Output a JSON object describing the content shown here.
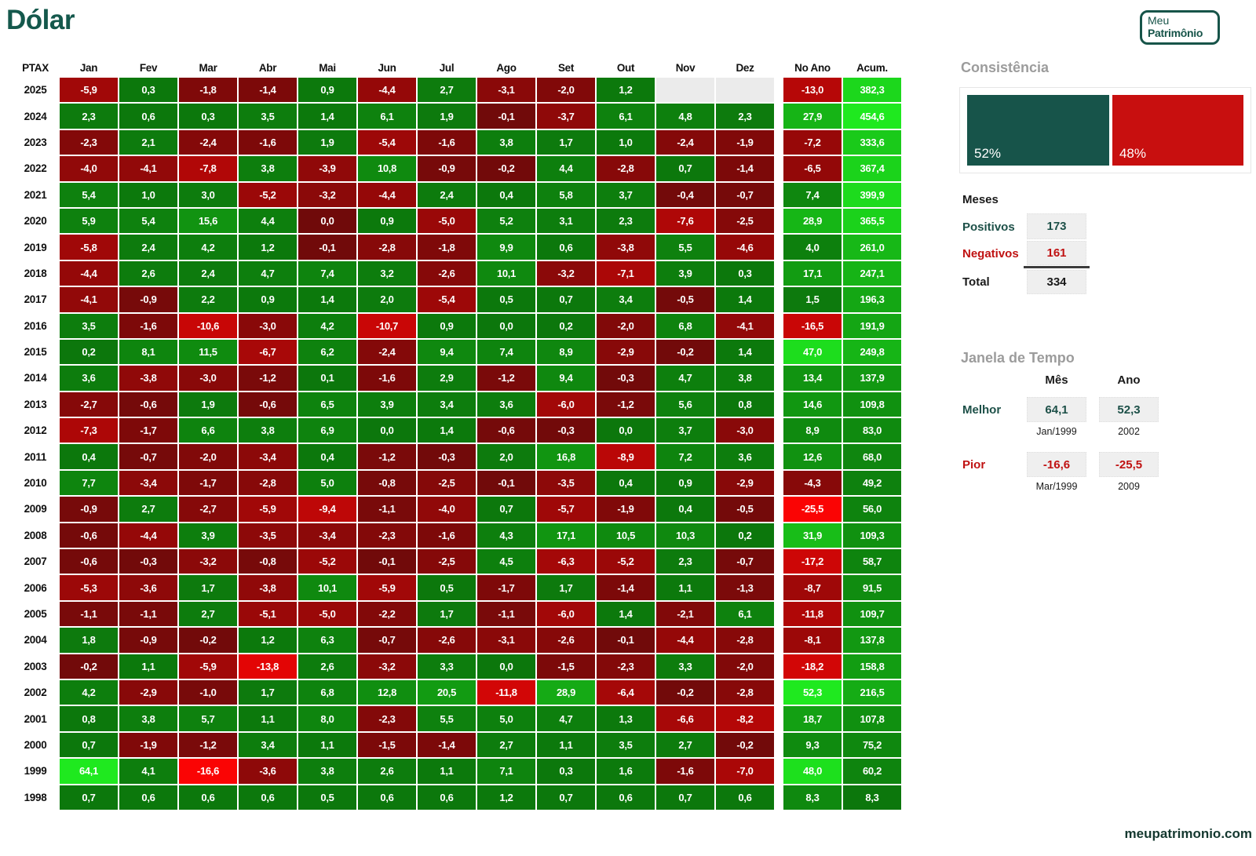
{
  "title": "Dólar",
  "logo": {
    "line1": "Meu",
    "line2": "Patrimônio"
  },
  "footer_link": "meupatrimonio.com",
  "chart_data": {
    "type": "heatmap",
    "title": "Dólar",
    "corner_label": "PTAX",
    "columns": [
      "Jan",
      "Fev",
      "Mar",
      "Abr",
      "Mai",
      "Jun",
      "Jul",
      "Ago",
      "Set",
      "Out",
      "Nov",
      "Dez",
      "No Ano",
      "Acum."
    ],
    "rows": [
      {
        "year": "2025",
        "values": [
          "-5,9",
          "0,3",
          "-1,8",
          "-1,4",
          "0,9",
          "-4,4",
          "2,7",
          "-3,1",
          "-2,0",
          "1,2",
          "",
          "",
          "-13,0",
          "382,3"
        ]
      },
      {
        "year": "2024",
        "values": [
          "2,3",
          "0,6",
          "0,3",
          "3,5",
          "1,4",
          "6,1",
          "1,9",
          "-0,1",
          "-3,7",
          "6,1",
          "4,8",
          "2,3",
          "27,9",
          "454,6"
        ]
      },
      {
        "year": "2023",
        "values": [
          "-2,3",
          "2,1",
          "-2,4",
          "-1,6",
          "1,9",
          "-5,4",
          "-1,6",
          "3,8",
          "1,7",
          "1,0",
          "-2,4",
          "-1,9",
          "-7,2",
          "333,6"
        ]
      },
      {
        "year": "2022",
        "values": [
          "-4,0",
          "-4,1",
          "-7,8",
          "3,8",
          "-3,9",
          "10,8",
          "-0,9",
          "-0,2",
          "4,4",
          "-2,8",
          "0,7",
          "-1,4",
          "-6,5",
          "367,4"
        ]
      },
      {
        "year": "2021",
        "values": [
          "5,4",
          "1,0",
          "3,0",
          "-5,2",
          "-3,2",
          "-4,4",
          "2,4",
          "0,4",
          "5,8",
          "3,7",
          "-0,4",
          "-0,7",
          "7,4",
          "399,9"
        ]
      },
      {
        "year": "2020",
        "values": [
          "5,9",
          "5,4",
          "15,6",
          "4,4",
          "0,0",
          "0,9",
          "-5,0",
          "5,2",
          "3,1",
          "2,3",
          "-7,6",
          "-2,5",
          "28,9",
          "365,5"
        ]
      },
      {
        "year": "2019",
        "values": [
          "-5,8",
          "2,4",
          "4,2",
          "1,2",
          "-0,1",
          "-2,8",
          "-1,8",
          "9,9",
          "0,6",
          "-3,8",
          "5,5",
          "-4,6",
          "4,0",
          "261,0"
        ]
      },
      {
        "year": "2018",
        "values": [
          "-4,4",
          "2,6",
          "2,4",
          "4,7",
          "7,4",
          "3,2",
          "-2,6",
          "10,1",
          "-3,2",
          "-7,1",
          "3,9",
          "0,3",
          "17,1",
          "247,1"
        ]
      },
      {
        "year": "2017",
        "values": [
          "-4,1",
          "-0,9",
          "2,2",
          "0,9",
          "1,4",
          "2,0",
          "-5,4",
          "0,5",
          "0,7",
          "3,4",
          "-0,5",
          "1,4",
          "1,5",
          "196,3"
        ]
      },
      {
        "year": "2016",
        "values": [
          "3,5",
          "-1,6",
          "-10,6",
          "-3,0",
          "4,2",
          "-10,7",
          "0,9",
          "0,0",
          "0,2",
          "-2,0",
          "6,8",
          "-4,1",
          "-16,5",
          "191,9"
        ]
      },
      {
        "year": "2015",
        "values": [
          "0,2",
          "8,1",
          "11,5",
          "-6,7",
          "6,2",
          "-2,4",
          "9,4",
          "7,4",
          "8,9",
          "-2,9",
          "-0,2",
          "1,4",
          "47,0",
          "249,8"
        ]
      },
      {
        "year": "2014",
        "values": [
          "3,6",
          "-3,8",
          "-3,0",
          "-1,2",
          "0,1",
          "-1,6",
          "2,9",
          "-1,2",
          "9,4",
          "-0,3",
          "4,7",
          "3,8",
          "13,4",
          "137,9"
        ]
      },
      {
        "year": "2013",
        "values": [
          "-2,7",
          "-0,6",
          "1,9",
          "-0,6",
          "6,5",
          "3,9",
          "3,4",
          "3,6",
          "-6,0",
          "-1,2",
          "5,6",
          "0,8",
          "14,6",
          "109,8"
        ]
      },
      {
        "year": "2012",
        "values": [
          "-7,3",
          "-1,7",
          "6,6",
          "3,8",
          "6,9",
          "0,0",
          "1,4",
          "-0,6",
          "-0,3",
          "0,0",
          "3,7",
          "-3,0",
          "8,9",
          "83,0"
        ]
      },
      {
        "year": "2011",
        "values": [
          "0,4",
          "-0,7",
          "-2,0",
          "-3,4",
          "0,4",
          "-1,2",
          "-0,3",
          "2,0",
          "16,8",
          "-8,9",
          "7,2",
          "3,6",
          "12,6",
          "68,0"
        ]
      },
      {
        "year": "2010",
        "values": [
          "7,7",
          "-3,4",
          "-1,7",
          "-2,8",
          "5,0",
          "-0,8",
          "-2,5",
          "-0,1",
          "-3,5",
          "0,4",
          "0,9",
          "-2,9",
          "-4,3",
          "49,2"
        ]
      },
      {
        "year": "2009",
        "values": [
          "-0,9",
          "2,7",
          "-2,7",
          "-5,9",
          "-9,4",
          "-1,1",
          "-4,0",
          "0,7",
          "-5,7",
          "-1,9",
          "0,4",
          "-0,5",
          "-25,5",
          "56,0"
        ]
      },
      {
        "year": "2008",
        "values": [
          "-0,6",
          "-4,4",
          "3,9",
          "-3,5",
          "-3,4",
          "-2,3",
          "-1,6",
          "4,3",
          "17,1",
          "10,5",
          "10,3",
          "0,2",
          "31,9",
          "109,3"
        ]
      },
      {
        "year": "2007",
        "values": [
          "-0,6",
          "-0,3",
          "-3,2",
          "-0,8",
          "-5,2",
          "-0,1",
          "-2,5",
          "4,5",
          "-6,3",
          "-5,2",
          "2,3",
          "-0,7",
          "-17,2",
          "58,7"
        ]
      },
      {
        "year": "2006",
        "values": [
          "-5,3",
          "-3,6",
          "1,7",
          "-3,8",
          "10,1",
          "-5,9",
          "0,5",
          "-1,7",
          "1,7",
          "-1,4",
          "1,1",
          "-1,3",
          "-8,7",
          "91,5"
        ]
      },
      {
        "year": "2005",
        "values": [
          "-1,1",
          "-1,1",
          "2,7",
          "-5,1",
          "-5,0",
          "-2,2",
          "1,7",
          "-1,1",
          "-6,0",
          "1,4",
          "-2,1",
          "6,1",
          "-11,8",
          "109,7"
        ]
      },
      {
        "year": "2004",
        "values": [
          "1,8",
          "-0,9",
          "-0,2",
          "1,2",
          "6,3",
          "-0,7",
          "-2,6",
          "-3,1",
          "-2,6",
          "-0,1",
          "-4,4",
          "-2,8",
          "-8,1",
          "137,8"
        ]
      },
      {
        "year": "2003",
        "values": [
          "-0,2",
          "1,1",
          "-5,9",
          "-13,8",
          "2,6",
          "-3,2",
          "3,3",
          "0,0",
          "-1,5",
          "-2,3",
          "3,3",
          "-2,0",
          "-18,2",
          "158,8"
        ]
      },
      {
        "year": "2002",
        "values": [
          "4,2",
          "-2,9",
          "-1,0",
          "1,7",
          "6,8",
          "12,8",
          "20,5",
          "-11,8",
          "28,9",
          "-6,4",
          "-0,2",
          "-2,8",
          "52,3",
          "216,5"
        ]
      },
      {
        "year": "2001",
        "values": [
          "0,8",
          "3,8",
          "5,7",
          "1,1",
          "8,0",
          "-2,3",
          "5,5",
          "5,0",
          "4,7",
          "1,3",
          "-6,6",
          "-8,2",
          "18,7",
          "107,8"
        ]
      },
      {
        "year": "2000",
        "values": [
          "0,7",
          "-1,9",
          "-1,2",
          "3,4",
          "1,1",
          "-1,5",
          "-1,4",
          "2,7",
          "1,1",
          "3,5",
          "2,7",
          "-0,2",
          "9,3",
          "75,2"
        ]
      },
      {
        "year": "1999",
        "values": [
          "64,1",
          "4,1",
          "-16,6",
          "-3,6",
          "3,8",
          "2,6",
          "1,1",
          "7,1",
          "0,3",
          "1,6",
          "-1,6",
          "-7,0",
          "48,0",
          "60,2"
        ]
      },
      {
        "year": "1998",
        "values": [
          "0,7",
          "0,6",
          "0,6",
          "0,6",
          "0,5",
          "0,6",
          "0,6",
          "1,2",
          "0,7",
          "0,6",
          "0,7",
          "0,6",
          "8,3",
          "8,3"
        ]
      }
    ],
    "negative_zero_cells": [
      {
        "year": "2020",
        "col_index": 4
      }
    ],
    "color_scale": {
      "green_lo": "#0C770C",
      "green_hi": "#1FE91F",
      "red_lo": "#700A0A",
      "red_hi": "#FA0404",
      "empty": "#EBEBEB"
    }
  },
  "consistencia": {
    "heading": "Consistência",
    "segments": [
      {
        "label": "52%",
        "value": 52,
        "color": "#17544A"
      },
      {
        "label": "48%",
        "value": 48,
        "color": "#C80F0F"
      }
    ]
  },
  "meses": {
    "heading": "Meses",
    "rows": [
      {
        "label": "Positivos",
        "value": "173"
      },
      {
        "label": "Negativos",
        "value": "161"
      },
      {
        "label": "Total",
        "value": "334"
      }
    ]
  },
  "janela": {
    "heading": "Janela de Tempo",
    "columns": [
      "Mês",
      "Ano"
    ],
    "rows": [
      {
        "label": "Melhor",
        "mes": "64,1",
        "mes_sub": "Jan/1999",
        "ano": "52,3",
        "ano_sub": "2002"
      },
      {
        "label": "Pior",
        "mes": "-16,6",
        "mes_sub": "Mar/1999",
        "ano": "-25,5",
        "ano_sub": "2009"
      }
    ]
  }
}
